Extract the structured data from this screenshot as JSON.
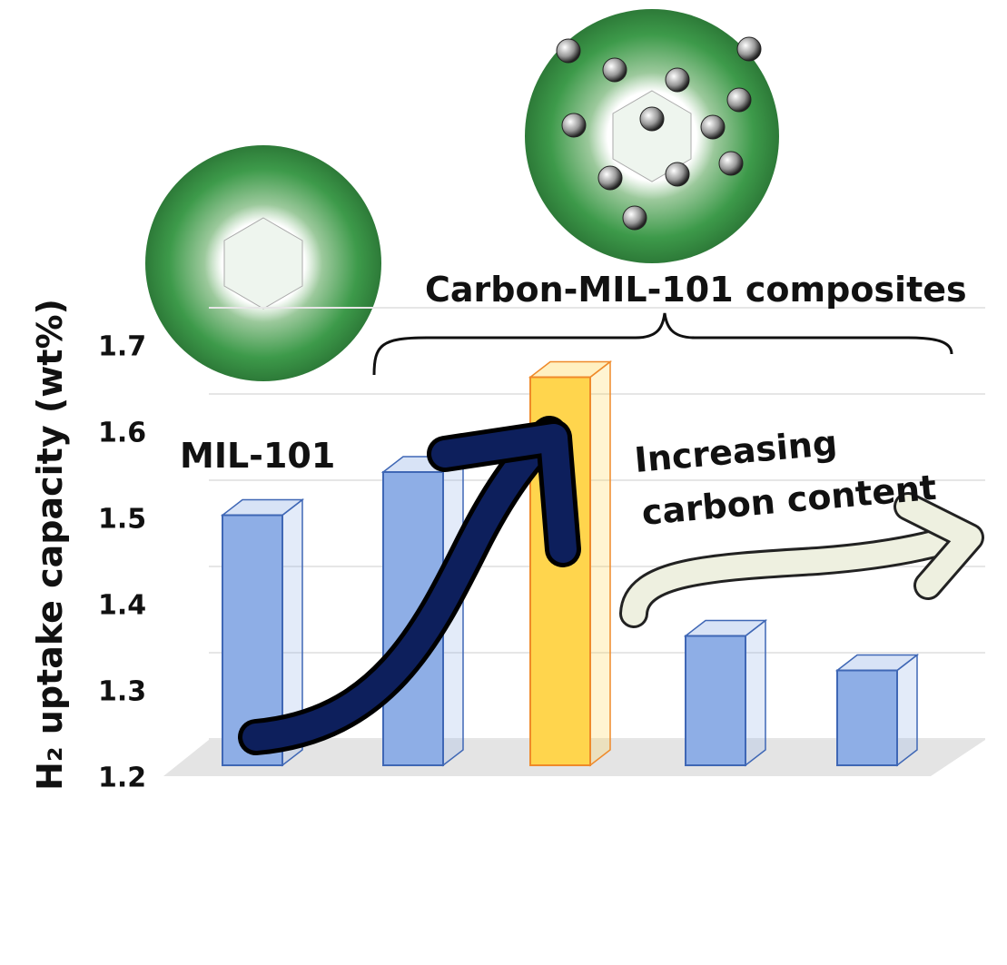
{
  "chart_data": {
    "type": "bar3d",
    "y_label": "H₂ uptake capacity (wt%)",
    "categories": [
      null,
      null,
      null,
      null,
      null
    ],
    "values": [
      1.49,
      1.54,
      1.65,
      1.35,
      1.31
    ],
    "colors": [
      "#8eaee6",
      "#8eaee6",
      "#ffd54d",
      "#8eaee6",
      "#8eaee6"
    ],
    "edge_colors": [
      "#3f67b5",
      "#3f67b5",
      "#ef8a2a",
      "#3f67b5",
      "#3f67b5"
    ],
    "ylim": [
      1.2,
      1.7
    ],
    "yticks": [
      1.2,
      1.3,
      1.4,
      1.5,
      1.6,
      1.7
    ],
    "grid": true,
    "annotations": {
      "mil": "MIL-101",
      "composites": "Carbon-MIL-101 composites",
      "increasing": [
        "Increasing",
        "carbon content"
      ]
    }
  }
}
